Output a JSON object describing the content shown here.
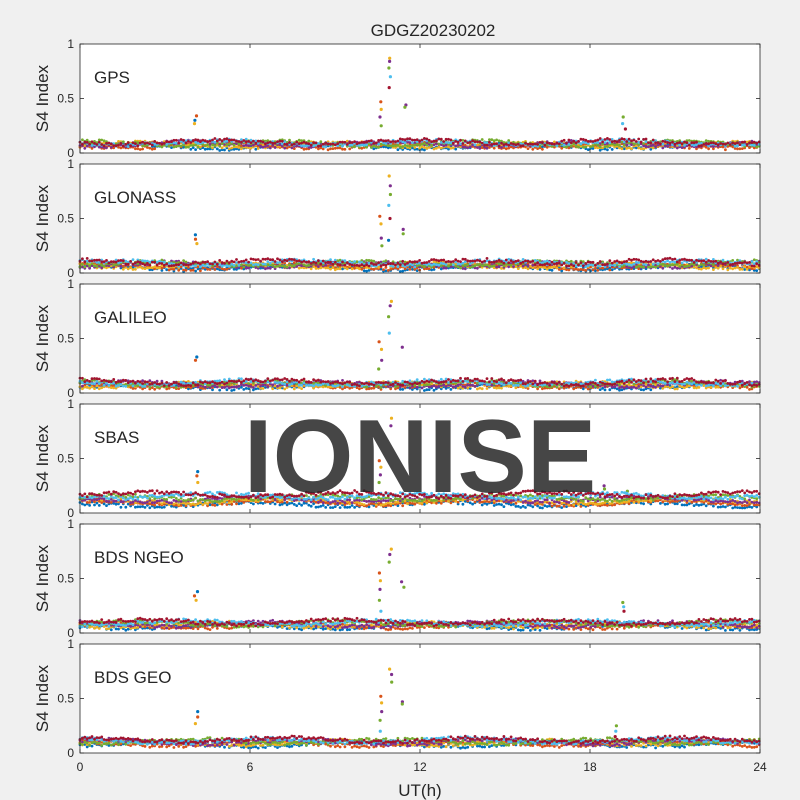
{
  "figure": {
    "title": "GDGZ20230202",
    "watermark": "IONISE",
    "xlabel": "UT(h)",
    "xlim": [
      0,
      24
    ],
    "xticks": [
      0,
      6,
      12,
      18,
      24
    ],
    "ylabel": "S4 Index",
    "ylim": [
      0,
      1
    ],
    "yticks": [
      0,
      0.5,
      1
    ],
    "ytick_labels": [
      "0",
      "0.5",
      "1"
    ]
  },
  "colors": {
    "background": "#f0f0f0",
    "axes_bg": "#ffffff",
    "axis": "#262626",
    "watermark": "#e6e6e6",
    "series": [
      "#0072bd",
      "#d95319",
      "#edb120",
      "#7e2f8e",
      "#77ac30",
      "#4dbeee",
      "#a2142f"
    ]
  },
  "chart_data": [
    {
      "type": "scatter",
      "panel_label": "GPS",
      "baseline": [
        0.06,
        0.1
      ],
      "spikes": [
        {
          "x": 4.1,
          "y": [
            0.3,
            0.34,
            0.27
          ]
        },
        {
          "x": 10.6,
          "y": [
            0.47,
            0.4,
            0.33,
            0.25
          ]
        },
        {
          "x": 10.95,
          "y": [
            0.87,
            0.84,
            0.78,
            0.7,
            0.6
          ]
        },
        {
          "x": 11.5,
          "y": [
            0.44,
            0.42
          ]
        },
        {
          "x": 19.2,
          "y": [
            0.33,
            0.27,
            0.22
          ]
        }
      ]
    },
    {
      "type": "scatter",
      "panel_label": "GLONASS",
      "baseline": [
        0.05,
        0.1
      ],
      "spikes": [
        {
          "x": 4.1,
          "y": [
            0.35,
            0.31,
            0.27
          ]
        },
        {
          "x": 10.6,
          "y": [
            0.52,
            0.45,
            0.32,
            0.25
          ]
        },
        {
          "x": 10.9,
          "y": [
            0.89,
            0.8,
            0.72,
            0.62,
            0.5,
            0.3
          ]
        },
        {
          "x": 11.4,
          "y": [
            0.4,
            0.36
          ]
        }
      ]
    },
    {
      "type": "scatter",
      "panel_label": "GALILEO",
      "baseline": [
        0.06,
        0.1
      ],
      "spikes": [
        {
          "x": 4.1,
          "y": [
            0.33,
            0.3
          ]
        },
        {
          "x": 10.6,
          "y": [
            0.47,
            0.4,
            0.3,
            0.22
          ]
        },
        {
          "x": 10.95,
          "y": [
            0.84,
            0.8,
            0.7,
            0.55
          ]
        },
        {
          "x": 11.4,
          "y": [
            0.42
          ]
        }
      ]
    },
    {
      "type": "scatter",
      "panel_label": "SBAS",
      "baseline": [
        0.08,
        0.17
      ],
      "spikes": [
        {
          "x": 4.1,
          "y": [
            0.38,
            0.34,
            0.28
          ]
        },
        {
          "x": 10.6,
          "y": [
            0.48,
            0.42,
            0.35,
            0.28
          ]
        },
        {
          "x": 10.95,
          "y": [
            0.87,
            0.8
          ]
        },
        {
          "x": 18.5,
          "y": [
            0.25,
            0.22
          ]
        },
        {
          "x": 19.3,
          "y": [
            0.2,
            0.18
          ]
        }
      ]
    },
    {
      "type": "scatter",
      "panel_label": "BDS NGEO",
      "baseline": [
        0.06,
        0.1
      ],
      "spikes": [
        {
          "x": 4.1,
          "y": [
            0.38,
            0.34,
            0.3
          ]
        },
        {
          "x": 10.6,
          "y": [
            0.55,
            0.48,
            0.4,
            0.3,
            0.2
          ]
        },
        {
          "x": 10.95,
          "y": [
            0.77,
            0.72,
            0.65
          ]
        },
        {
          "x": 11.4,
          "y": [
            0.47,
            0.42
          ]
        },
        {
          "x": 19.2,
          "y": [
            0.28,
            0.24,
            0.2
          ]
        }
      ]
    },
    {
      "type": "scatter",
      "panel_label": "BDS GEO",
      "baseline": [
        0.08,
        0.12
      ],
      "spikes": [
        {
          "x": 4.1,
          "y": [
            0.38,
            0.33,
            0.27
          ]
        },
        {
          "x": 10.6,
          "y": [
            0.52,
            0.46,
            0.38,
            0.3,
            0.2
          ]
        },
        {
          "x": 10.95,
          "y": [
            0.77,
            0.72,
            0.65
          ]
        },
        {
          "x": 11.4,
          "y": [
            0.47,
            0.45
          ]
        },
        {
          "x": 18.9,
          "y": [
            0.25,
            0.2,
            0.15
          ]
        }
      ]
    }
  ]
}
